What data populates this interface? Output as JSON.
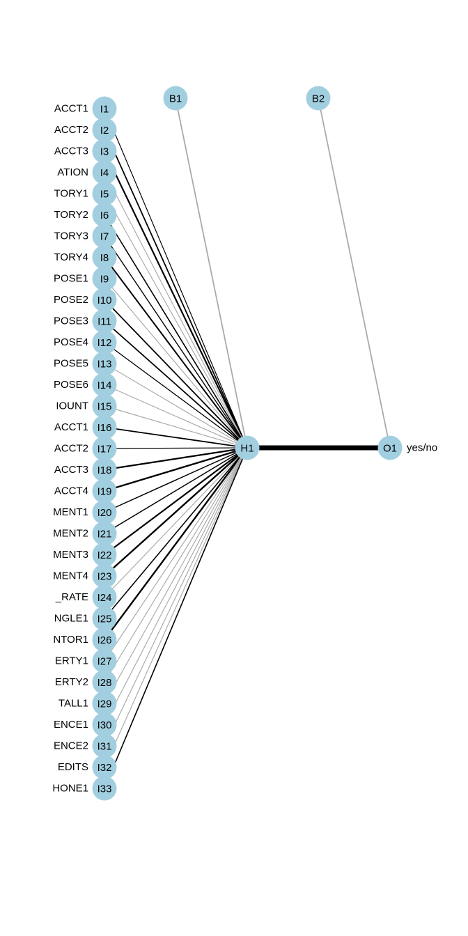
{
  "diagram": {
    "type": "neural-network-plot",
    "colors": {
      "node_fill": "#a2cfe0",
      "positive_edge": "#000000",
      "negative_edge": "#aaaaaa",
      "background": "#ffffff"
    },
    "input_nodes": [
      {
        "id": "I1",
        "variable": "ACCT1",
        "sign": "positive",
        "weight": 1.2
      },
      {
        "id": "I2",
        "variable": "ACCT2",
        "sign": "positive",
        "weight": 1.8
      },
      {
        "id": "I3",
        "variable": "ACCT3",
        "sign": "positive",
        "weight": 2.2
      },
      {
        "id": "I4",
        "variable": "ATION",
        "sign": "negative",
        "weight": 1.2
      },
      {
        "id": "I5",
        "variable": "TORY1",
        "sign": "negative",
        "weight": 1.2
      },
      {
        "id": "I6",
        "variable": "TORY2",
        "sign": "positive",
        "weight": 1.6
      },
      {
        "id": "I7",
        "variable": "TORY3",
        "sign": "positive",
        "weight": 1.4
      },
      {
        "id": "I8",
        "variable": "TORY4",
        "sign": "positive",
        "weight": 2.0
      },
      {
        "id": "I9",
        "variable": "POSE1",
        "sign": "negative",
        "weight": 1.2
      },
      {
        "id": "I10",
        "variable": "POSE2",
        "sign": "positive",
        "weight": 1.8
      },
      {
        "id": "I11",
        "variable": "POSE3",
        "sign": "positive",
        "weight": 1.8
      },
      {
        "id": "I12",
        "variable": "POSE4",
        "sign": "positive",
        "weight": 1.3
      },
      {
        "id": "I13",
        "variable": "POSE5",
        "sign": "negative",
        "weight": 1.2
      },
      {
        "id": "I14",
        "variable": "POSE6",
        "sign": "negative",
        "weight": 1.2
      },
      {
        "id": "I15",
        "variable": "IOUNT",
        "sign": "negative",
        "weight": 1.2
      },
      {
        "id": "I16",
        "variable": "ACCT1",
        "sign": "positive",
        "weight": 1.8
      },
      {
        "id": "I17",
        "variable": "ACCT2",
        "sign": "positive",
        "weight": 1.3
      },
      {
        "id": "I18",
        "variable": "ACCT3",
        "sign": "positive",
        "weight": 2.2
      },
      {
        "id": "I19",
        "variable": "ACCT4",
        "sign": "positive",
        "weight": 2.4
      },
      {
        "id": "I20",
        "variable": "MENT1",
        "sign": "positive",
        "weight": 1.5
      },
      {
        "id": "I21",
        "variable": "MENT2",
        "sign": "positive",
        "weight": 1.5
      },
      {
        "id": "I22",
        "variable": "MENT3",
        "sign": "positive",
        "weight": 2.2
      },
      {
        "id": "I23",
        "variable": "MENT4",
        "sign": "positive",
        "weight": 2.4
      },
      {
        "id": "I24",
        "variable": "_RATE",
        "sign": "negative",
        "weight": 1.2
      },
      {
        "id": "I25",
        "variable": "NGLE1",
        "sign": "positive",
        "weight": 1.6
      },
      {
        "id": "I26",
        "variable": "NTOR1",
        "sign": "positive",
        "weight": 2.4
      },
      {
        "id": "I27",
        "variable": "ERTY1",
        "sign": "negative",
        "weight": 1.2
      },
      {
        "id": "I28",
        "variable": "ERTY2",
        "sign": "negative",
        "weight": 1.2
      },
      {
        "id": "I29",
        "variable": "TALL1",
        "sign": "negative",
        "weight": 1.2
      },
      {
        "id": "I30",
        "variable": "ENCE1",
        "sign": "negative",
        "weight": 1.2
      },
      {
        "id": "I31",
        "variable": "ENCE2",
        "sign": "negative",
        "weight": 1.2
      },
      {
        "id": "I32",
        "variable": "EDITS",
        "sign": "negative",
        "weight": 1.2
      },
      {
        "id": "I33",
        "variable": "HONE1",
        "sign": "positive",
        "weight": 1.6
      }
    ],
    "hidden_nodes": [
      {
        "id": "H1"
      }
    ],
    "output_nodes": [
      {
        "id": "O1",
        "variable": "yes/no"
      }
    ],
    "bias_nodes": [
      {
        "id": "B1",
        "target": "H1",
        "sign": "negative",
        "weight": 1.8
      },
      {
        "id": "B2",
        "target": "O1",
        "sign": "negative",
        "weight": 1.8
      }
    ],
    "hidden_output_edges": [
      {
        "from": "H1",
        "to": "O1",
        "sign": "positive",
        "weight": 7
      }
    ]
  }
}
